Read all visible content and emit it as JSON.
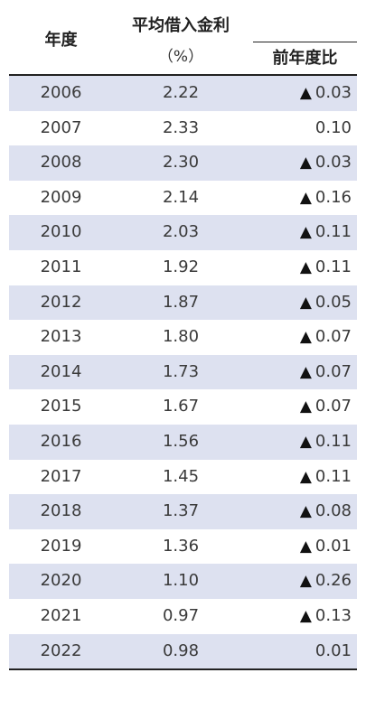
{
  "table": {
    "headers": {
      "year": "年度",
      "rate": "平均借入金利",
      "unit": "（%）",
      "change": "前年度比"
    },
    "negative_symbol": "▲",
    "rows": [
      {
        "year": "2006",
        "rate": "2.22",
        "change": "0.03",
        "negative": true
      },
      {
        "year": "2007",
        "rate": "2.33",
        "change": "0.10",
        "negative": false
      },
      {
        "year": "2008",
        "rate": "2.30",
        "change": "0.03",
        "negative": true
      },
      {
        "year": "2009",
        "rate": "2.14",
        "change": "0.16",
        "negative": true
      },
      {
        "year": "2010",
        "rate": "2.03",
        "change": "0.11",
        "negative": true
      },
      {
        "year": "2011",
        "rate": "1.92",
        "change": "0.11",
        "negative": true
      },
      {
        "year": "2012",
        "rate": "1.87",
        "change": "0.05",
        "negative": true
      },
      {
        "year": "2013",
        "rate": "1.80",
        "change": "0.07",
        "negative": true
      },
      {
        "year": "2014",
        "rate": "1.73",
        "change": "0.07",
        "negative": true
      },
      {
        "year": "2015",
        "rate": "1.67",
        "change": "0.07",
        "negative": true
      },
      {
        "year": "2016",
        "rate": "1.56",
        "change": "0.11",
        "negative": true
      },
      {
        "year": "2017",
        "rate": "1.45",
        "change": "0.11",
        "negative": true
      },
      {
        "year": "2018",
        "rate": "1.37",
        "change": "0.08",
        "negative": true
      },
      {
        "year": "2019",
        "rate": "1.36",
        "change": "0.01",
        "negative": true
      },
      {
        "year": "2020",
        "rate": "1.10",
        "change": "0.26",
        "negative": true
      },
      {
        "year": "2021",
        "rate": "0.97",
        "change": "0.13",
        "negative": true
      },
      {
        "year": "2022",
        "rate": "0.98",
        "change": "0.01",
        "negative": false
      }
    ]
  },
  "colors": {
    "shaded_row": "#dde1f0",
    "rule": "#222222",
    "text": "#3a3a3a"
  }
}
